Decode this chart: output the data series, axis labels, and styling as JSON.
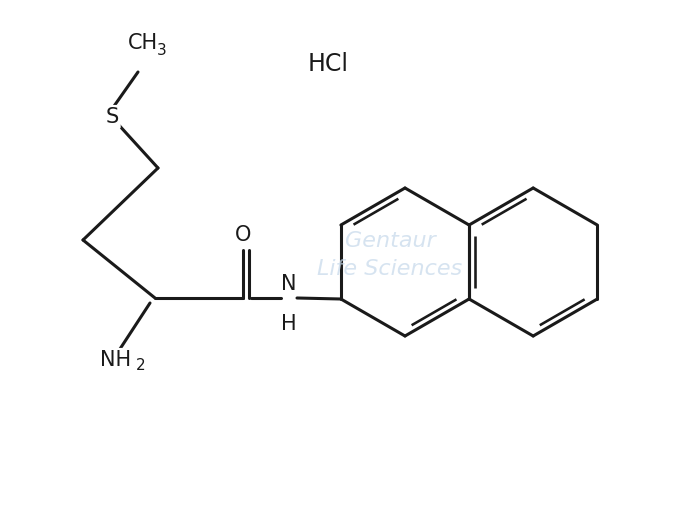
{
  "bg_color": "#ffffff",
  "line_color": "#1a1a1a",
  "line_width": 2.2,
  "watermark_color": "#c5d8ea",
  "ch3_text": "CH",
  "ch3_sub": "3",
  "s_text": "S",
  "o_text": "O",
  "n_text": "N",
  "h_text": "H",
  "nh2_text": "NH",
  "nh2_sub": "2",
  "hcl_text": "HCl",
  "font_size": 15,
  "sub_font_size": 11,
  "hcl_font_size": 17
}
